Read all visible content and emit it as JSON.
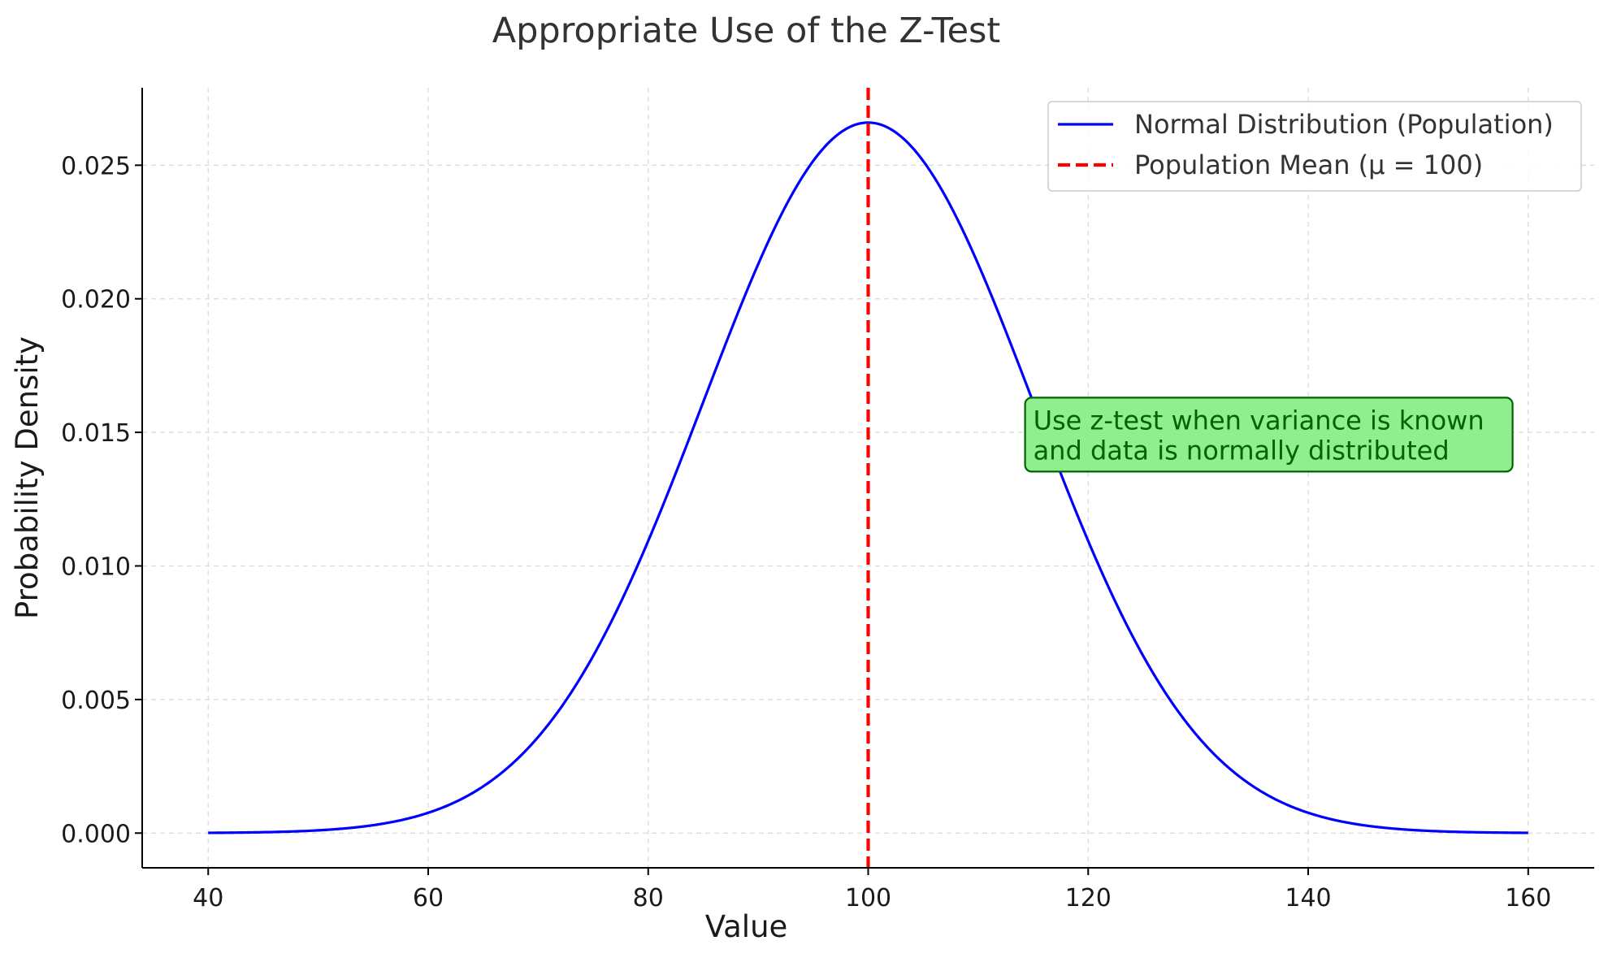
{
  "chart_data": {
    "type": "line",
    "title": "Appropriate Use of the Z-Test",
    "xlabel": "Value",
    "ylabel": "Probability Density",
    "xlim": [
      34,
      166
    ],
    "ylim": [
      -0.0013,
      0.0279
    ],
    "x_ticks": [
      40,
      60,
      80,
      100,
      120,
      140,
      160
    ],
    "x_tick_labels": [
      "40",
      "60",
      "80",
      "100",
      "120",
      "140",
      "160"
    ],
    "y_ticks": [
      0.0,
      0.005,
      0.01,
      0.015,
      0.02,
      0.025
    ],
    "y_tick_labels": [
      "0.000",
      "0.005",
      "0.010",
      "0.015",
      "0.020",
      "0.025"
    ],
    "grid": true,
    "legend_position": "top-right",
    "series": [
      {
        "name": "Normal Distribution (Population)",
        "color": "#0000ff",
        "style": "solid",
        "distribution": "normal",
        "mean": 100,
        "sd": 15,
        "x_range": [
          40,
          160
        ]
      },
      {
        "name": "Population Mean (μ = 100)",
        "color": "#ff0000",
        "style": "dashed",
        "vertical_line_x": 100
      }
    ],
    "annotation": {
      "lines": [
        "Use z-test when variance is known",
        "and data is normally distributed"
      ],
      "background": "#90ee90",
      "border": "#006400",
      "text_color": "#006400",
      "anchor_x": 115,
      "anchor_y": 0.0142
    }
  }
}
